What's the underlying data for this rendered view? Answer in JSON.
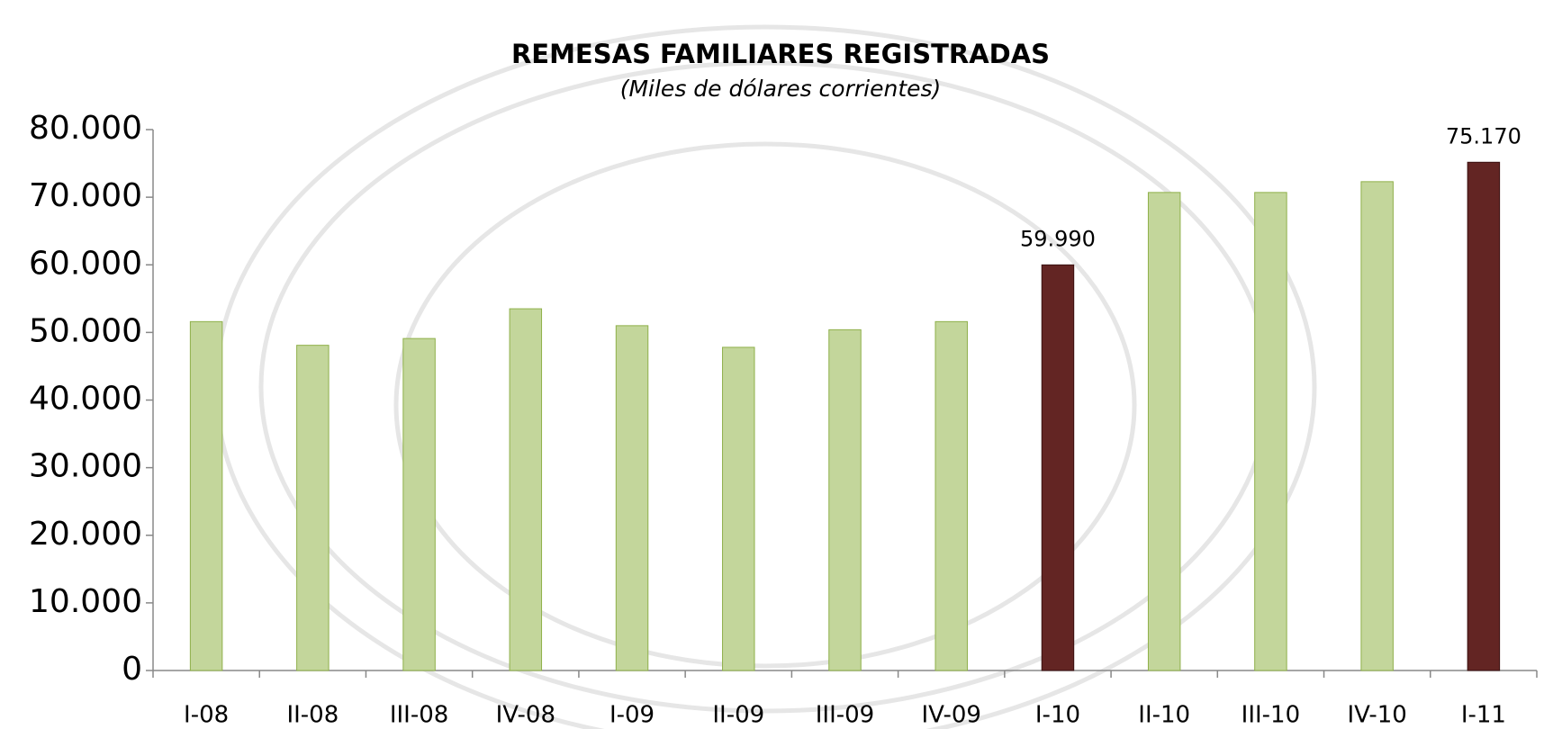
{
  "chart_data": {
    "type": "bar",
    "title": "REMESAS FAMILIARES REGISTRADAS",
    "subtitle": "(Miles de dólares corrientes)",
    "categories": [
      "I-08",
      "II-08",
      "III-08",
      "IV-08",
      "I-09",
      "II-09",
      "III-09",
      "IV-09",
      "I-10",
      "II-10",
      "III-10",
      "IV-10",
      "I-11"
    ],
    "values": [
      51600,
      48100,
      49100,
      53500,
      51000,
      47800,
      50400,
      51600,
      59990,
      70700,
      70700,
      72300,
      75170
    ],
    "value_labels": [
      null,
      null,
      null,
      null,
      null,
      null,
      null,
      null,
      "59.990",
      null,
      null,
      null,
      "75.170"
    ],
    "colors": [
      "#c3d69b",
      "#c3d69b",
      "#c3d69b",
      "#c3d69b",
      "#c3d69b",
      "#c3d69b",
      "#c3d69b",
      "#c3d69b",
      "#632523",
      "#c3d69b",
      "#c3d69b",
      "#c3d69b",
      "#632523"
    ],
    "ylim": [
      0,
      80000
    ],
    "yticks": [
      0,
      {
        "value": 10000,
        "label": "10.000"
      },
      {
        "value": 20000,
        "label": "20.000"
      },
      {
        "value": 30000,
        "label": "30.000"
      },
      {
        "value": 40000,
        "label": "40.000"
      },
      {
        "value": 50000,
        "label": "50.000"
      },
      {
        "value": 60000,
        "label": "60.000"
      },
      {
        "value": 70000,
        "label": "70.000"
      },
      {
        "value": 80000,
        "label": "80.000"
      }
    ],
    "grid": false
  }
}
